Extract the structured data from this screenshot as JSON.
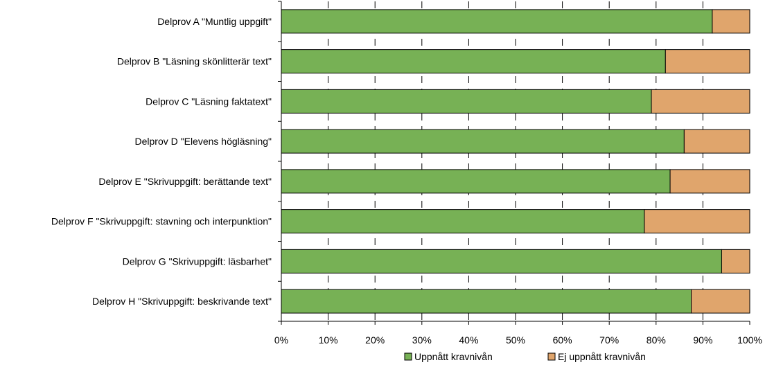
{
  "chart_data": {
    "type": "bar",
    "orientation": "horizontal",
    "stacked": "percent",
    "categories": [
      "Delprov A \"Muntlig uppgift\"",
      "Delprov B \"Läsning skönlitterär text\"",
      "Delprov C \"Läsning faktatext\"",
      "Delprov D \"Elevens högläsning\"",
      "Delprov E \"Skrivuppgift: berättande text\"",
      "Delprov F \"Skrivuppgift: stavning och interpunktion\"",
      "Delprov G \"Skrivuppgift: läsbarhet\"",
      "Delprov H \"Skrivuppgift: beskrivande text\""
    ],
    "series": [
      {
        "name": "Uppnått kravnivån",
        "color": "#77b155",
        "values": [
          92,
          82,
          79,
          86,
          83,
          77.5,
          94,
          87.5
        ]
      },
      {
        "name": "Ej uppnått kravnivån",
        "color": "#e0a56c",
        "values": [
          8,
          18,
          21,
          14,
          17,
          22.5,
          6,
          12.5
        ]
      }
    ],
    "xlim": [
      0,
      100
    ],
    "xticks": [
      "0%",
      "10%",
      "20%",
      "30%",
      "40%",
      "50%",
      "60%",
      "70%",
      "80%",
      "90%",
      "100%"
    ],
    "grid": "vertical dashed",
    "legend": "bottom"
  }
}
